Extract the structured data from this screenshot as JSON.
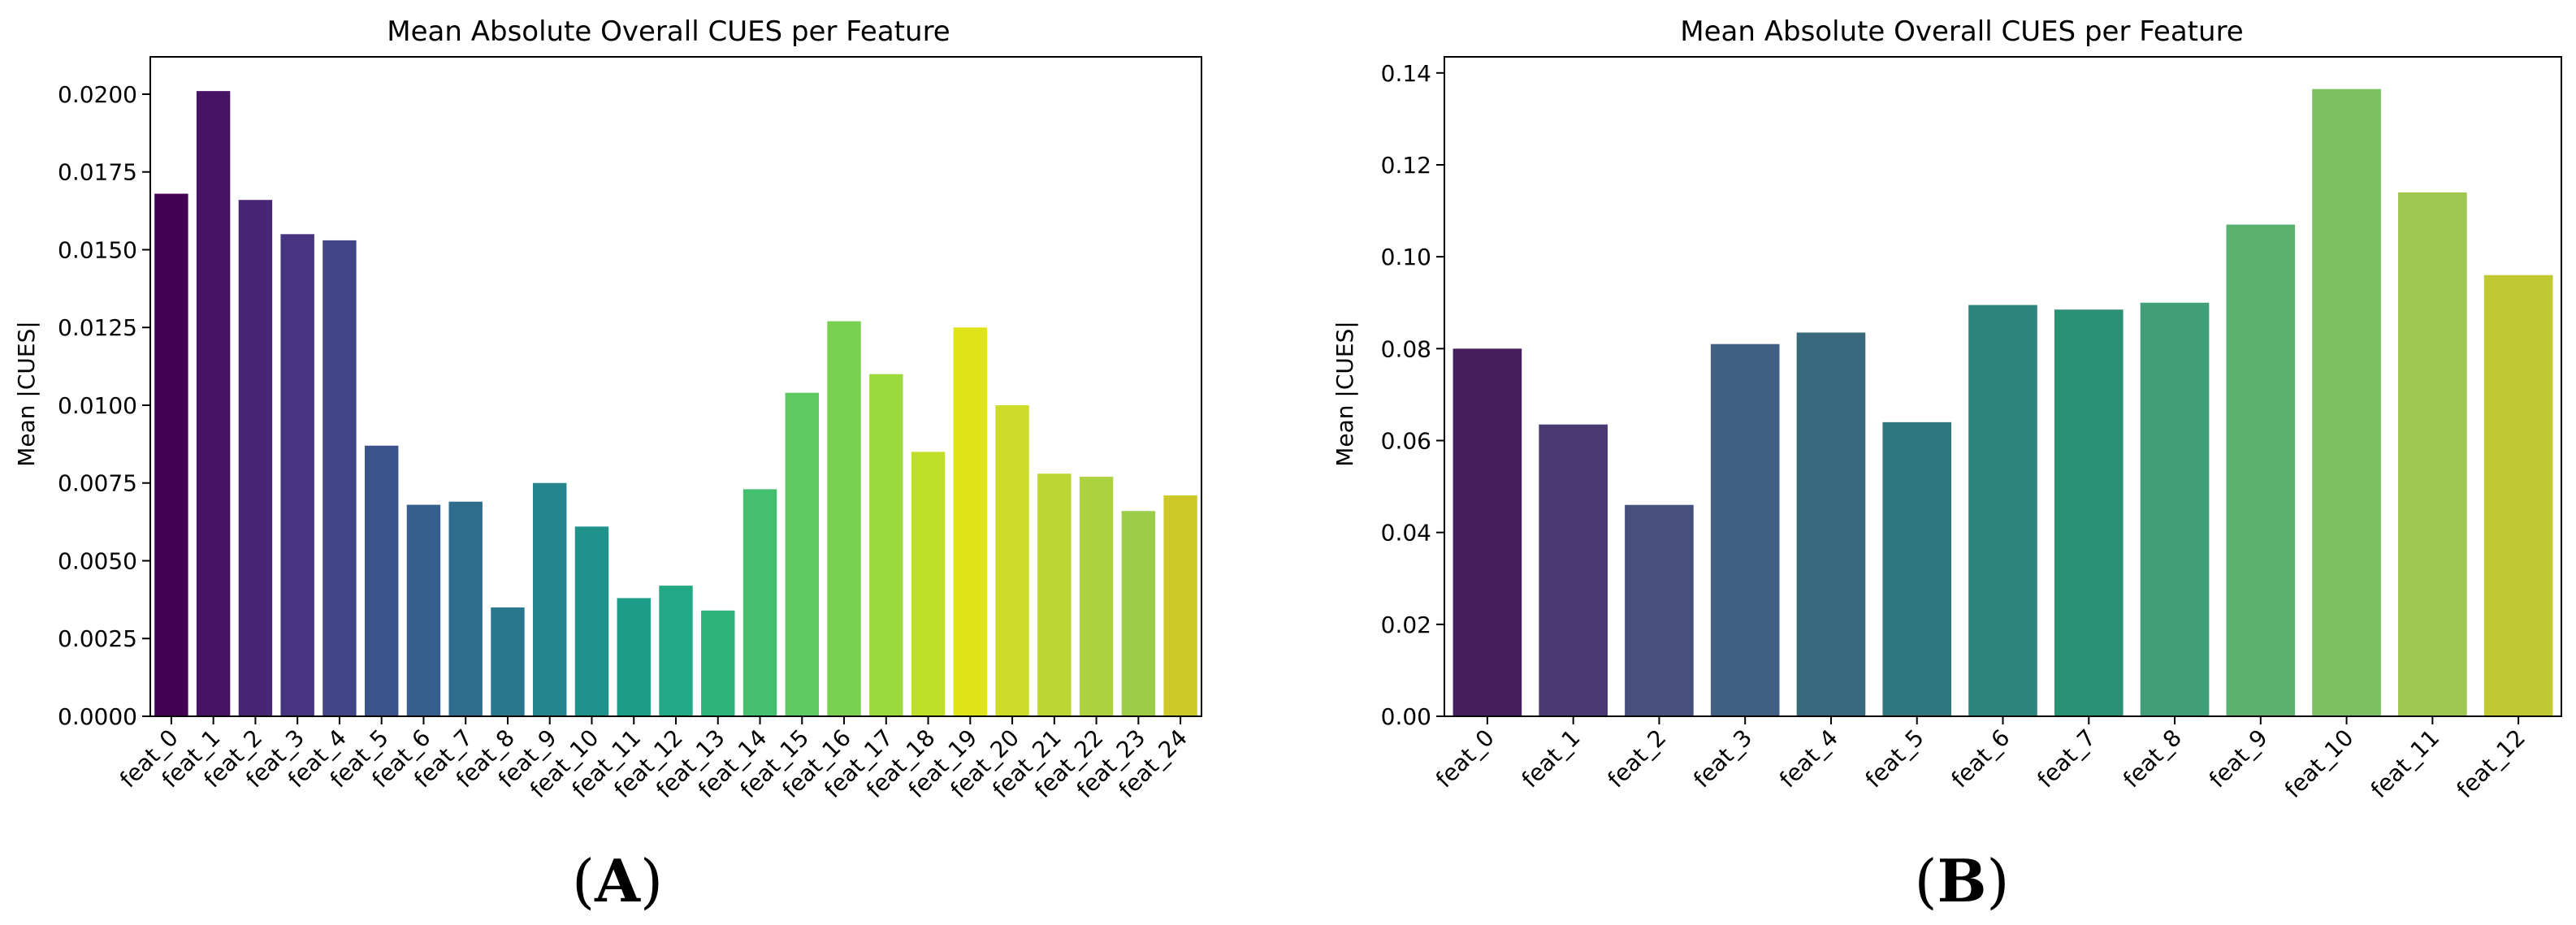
{
  "chart_data": [
    {
      "type": "bar",
      "title": "Mean Absolute Overall CUES per Feature",
      "xlabel": "",
      "ylabel": "Mean |CUES|",
      "panel_label_open": "(",
      "panel_label_letter": "A",
      "panel_label_close": ")",
      "ylim": [
        0,
        0.0212
      ],
      "yticks": [
        "0.0000",
        "0.0025",
        "0.0050",
        "0.0075",
        "0.0100",
        "0.0125",
        "0.0150",
        "0.0175",
        "0.0200"
      ],
      "categories": [
        "feat_0",
        "feat_1",
        "feat_2",
        "feat_3",
        "feat_4",
        "feat_5",
        "feat_6",
        "feat_7",
        "feat_8",
        "feat_9",
        "feat_10",
        "feat_11",
        "feat_12",
        "feat_13",
        "feat_14",
        "feat_15",
        "feat_16",
        "feat_17",
        "feat_18",
        "feat_19",
        "feat_20",
        "feat_21",
        "feat_22",
        "feat_23",
        "feat_24"
      ],
      "values": [
        0.0168,
        0.0201,
        0.0166,
        0.0155,
        0.0153,
        0.0087,
        0.0068,
        0.0069,
        0.0035,
        0.0075,
        0.0061,
        0.0038,
        0.0042,
        0.0034,
        0.0073,
        0.0104,
        0.0127,
        0.011,
        0.0085,
        0.0125,
        0.01,
        0.0078,
        0.0077,
        0.0066,
        0.0071
      ],
      "colors": [
        "#440154",
        "#471365",
        "#482475",
        "#463480",
        "#414487",
        "#3b528b",
        "#355f8d",
        "#2f6c8e",
        "#2a788e",
        "#25848e",
        "#21918c",
        "#1e9c89",
        "#22a884",
        "#2fb47c",
        "#44bf70",
        "#5ec962",
        "#7ad151",
        "#9bd93c",
        "#bddf26",
        "#dfe318",
        "#cddc2a",
        "#bcd735",
        "#acd23f",
        "#9ccd49",
        "#cdc928"
      ],
      "grid": false
    },
    {
      "type": "bar",
      "title": "Mean Absolute Overall CUES per Feature",
      "xlabel": "",
      "ylabel": "Mean |CUES|",
      "panel_label_open": "(",
      "panel_label_letter": "B",
      "panel_label_close": ")",
      "ylim": [
        0,
        0.1435
      ],
      "yticks": [
        "0.00",
        "0.02",
        "0.04",
        "0.06",
        "0.08",
        "0.10",
        "0.12",
        "0.14"
      ],
      "categories": [
        "feat_0",
        "feat_1",
        "feat_2",
        "feat_3",
        "feat_4",
        "feat_5",
        "feat_6",
        "feat_7",
        "feat_8",
        "feat_9",
        "feat_10",
        "feat_11",
        "feat_12"
      ],
      "values": [
        0.08,
        0.0635,
        0.046,
        0.081,
        0.0835,
        0.064,
        0.0895,
        0.0885,
        0.09,
        0.107,
        0.1365,
        0.114,
        0.096
      ],
      "colors": [
        "#481f5e",
        "#4b3974",
        "#47507c",
        "#405f82",
        "#38697f",
        "#2f7880",
        "#2e857e",
        "#2a9074",
        "#41a079",
        "#5bb070",
        "#7bc062",
        "#9dc751",
        "#c0c931"
      ],
      "grid": false
    }
  ]
}
